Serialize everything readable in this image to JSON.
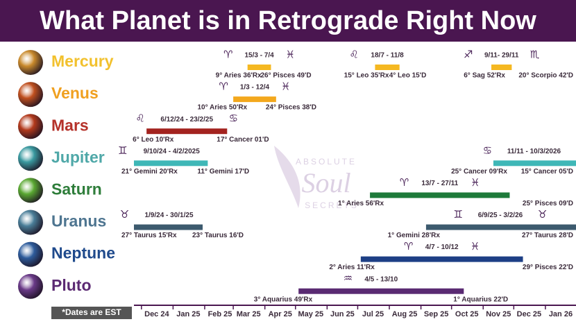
{
  "chart_data": {
    "type": "timeline",
    "title": "What Planet is in Retrograde Right Now",
    "note": "*Dates are EST",
    "watermark": [
      "ABSOLUTE",
      "Soul",
      "SECRETS"
    ],
    "xlim": [
      "2024-11-25",
      "2026-01-31"
    ],
    "xticks": [
      {
        "value": "2024-12-01",
        "label": "Dec 24"
      },
      {
        "value": "2025-01-01",
        "label": "Jan 25"
      },
      {
        "value": "2025-02-01",
        "label": "Feb 25"
      },
      {
        "value": "2025-03-01",
        "label": "Mar 25"
      },
      {
        "value": "2025-04-01",
        "label": "Apr 25"
      },
      {
        "value": "2025-05-01",
        "label": "May 25"
      },
      {
        "value": "2025-06-01",
        "label": "Jun 25"
      },
      {
        "value": "2025-07-01",
        "label": "Jul 25"
      },
      {
        "value": "2025-08-01",
        "label": "Aug 25"
      },
      {
        "value": "2025-09-01",
        "label": "Sep 25"
      },
      {
        "value": "2025-10-01",
        "label": "Oct 25"
      },
      {
        "value": "2025-11-01",
        "label": "Nov 25"
      },
      {
        "value": "2025-12-01",
        "label": "Dec 25"
      },
      {
        "value": "2026-01-01",
        "label": "Jan 26"
      }
    ],
    "series": [
      {
        "name": "Mercury",
        "color": "#f5b821",
        "name_color": "#f2c12e",
        "icon_color": "#c98a2c",
        "bars": [
          {
            "dates": "15/3 - 7/4",
            "start": "2025-03-15",
            "end": "2025-04-07",
            "start_label": "9° Aries 36'Rx",
            "end_label": "26° Pisces 49'D",
            "start_sign": "♈",
            "end_sign": "♓"
          },
          {
            "dates": "18/7 - 11/8",
            "start": "2025-07-18",
            "end": "2025-08-11",
            "start_label": "15° Leo 35'Rx",
            "end_label": "4° Leo 15'D",
            "start_sign": "♌",
            "end_sign": null
          },
          {
            "dates": "9/11- 29/11",
            "start": "2025-11-09",
            "end": "2025-11-29",
            "start_label": "6° Sag 52'Rx",
            "end_label": "20° Scorpio 42'D",
            "start_sign": "♐",
            "end_sign": "♏"
          }
        ]
      },
      {
        "name": "Venus",
        "color": "#f3a81d",
        "name_color": "#f0a020",
        "icon_color": "#c0501f",
        "bars": [
          {
            "dates": "1/3 - 12/4",
            "start": "2025-03-01",
            "end": "2025-04-12",
            "start_label": "10° Aries 50'Rx",
            "end_label": "24° Pisces 38'D",
            "start_sign": "♈",
            "end_sign": "♓"
          }
        ]
      },
      {
        "name": "Mars",
        "color": "#a3231f",
        "name_color": "#b5322a",
        "icon_color": "#b33a1c",
        "bars": [
          {
            "dates": "6/12/24 - 23/2/25",
            "start": "2024-12-06",
            "end": "2025-02-23",
            "start_label": "6° Leo 10'Rx",
            "end_label": "17° Cancer 01'D",
            "start_sign": "♌",
            "end_sign": "♋"
          }
        ]
      },
      {
        "name": "Jupiter",
        "color": "#3fb7b7",
        "name_color": "#4fa8a8",
        "icon_color": "#3a9aa0",
        "bars": [
          {
            "dates": "9/10/24 - 4/2/2025",
            "start": "2024-10-09",
            "end": "2025-02-04",
            "start_label": "21° Gemini 20'Rx",
            "end_label": "11° Gemini 17'D",
            "start_sign": "♊",
            "end_sign": null
          },
          {
            "dates": "11/11 - 10/3/2026",
            "start": "2025-11-11",
            "end": "2026-03-10",
            "start_label": "25° Cancer 09'Rx",
            "end_label": "15° Cancer 05'D",
            "start_sign": "♋",
            "end_sign": null
          }
        ]
      },
      {
        "name": "Saturn",
        "color": "#1e7a3a",
        "name_color": "#2e7d3a",
        "icon_color": "#5aa832",
        "bars": [
          {
            "dates": "13/7 - 27/11",
            "start": "2025-07-13",
            "end": "2025-11-27",
            "start_label": "1° Aries 56'Rx",
            "end_label": "25° Pisces 09'D",
            "start_sign": "♈",
            "end_sign": "♓"
          }
        ]
      },
      {
        "name": "Uranus",
        "color": "#3c5a6e",
        "name_color": "#4e7590",
        "icon_color": "#4a7e98",
        "bars": [
          {
            "dates": "1/9/24 - 30/1/25",
            "start": "2024-09-01",
            "end": "2025-01-30",
            "start_label": "27° Taurus 15'Rx",
            "end_label": "23° Taurus 16'D",
            "start_sign": "♉",
            "end_sign": null
          },
          {
            "dates": "6/9/25 - 3/2/26",
            "start": "2025-09-06",
            "end": "2026-02-03",
            "start_label": "1° Gemini 28'Rx",
            "end_label": "27° Taurus 28'D",
            "start_sign": "♊",
            "end_sign": "♉"
          }
        ]
      },
      {
        "name": "Neptune",
        "color": "#1d3f85",
        "name_color": "#1f4a8c",
        "icon_color": "#2e5c9c",
        "bars": [
          {
            "dates": "4/7 - 10/12",
            "start": "2025-07-04",
            "end": "2025-12-10",
            "start_label": "2° Aries 11'Rx",
            "end_label": "29° Pisces 22'D",
            "start_sign": "♈",
            "end_sign": "♓"
          }
        ]
      },
      {
        "name": "Pluto",
        "color": "#5a2a72",
        "name_color": "#5c2a73",
        "icon_color": "#6a3a88",
        "bars": [
          {
            "dates": "4/5 - 13/10",
            "start": "2025-05-04",
            "end": "2025-10-13",
            "start_label": "3° Aquarius 49'Rx",
            "end_label": "1° Aquarius 22'D",
            "start_sign": "♒",
            "end_sign": null
          }
        ]
      }
    ]
  }
}
